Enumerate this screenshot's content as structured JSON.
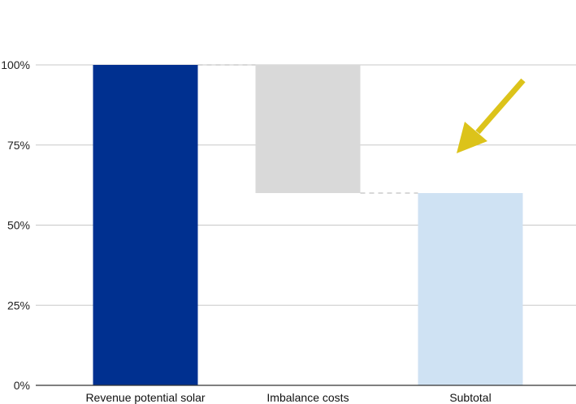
{
  "chart_data": {
    "type": "waterfall",
    "categories": [
      "Revenue potential solar",
      "Imbalance costs",
      "Subtotal"
    ],
    "bars": [
      {
        "category": "Revenue potential solar",
        "start": 0,
        "end": 100,
        "kind": "total"
      },
      {
        "category": "Imbalance costs",
        "start": 60,
        "end": 100,
        "kind": "decrease"
      },
      {
        "category": "Subtotal",
        "start": 0,
        "end": 60,
        "kind": "total"
      }
    ],
    "yticks": [
      "0%",
      "25%",
      "50%",
      "75%",
      "100%"
    ],
    "ytick_values": [
      0,
      25,
      50,
      75,
      100
    ],
    "ylim": [
      0,
      100
    ],
    "grid": true,
    "colors": {
      "total_first": "#003090",
      "decrease": "#d9d9d9",
      "subtotal": "#cfe2f3",
      "grid": "#c8c8c8",
      "connector": "#cccccc",
      "arrow": "#dcc31a",
      "axis": "#333333"
    },
    "annotation": {
      "type": "arrow-icon",
      "points_to": "Subtotal"
    }
  }
}
